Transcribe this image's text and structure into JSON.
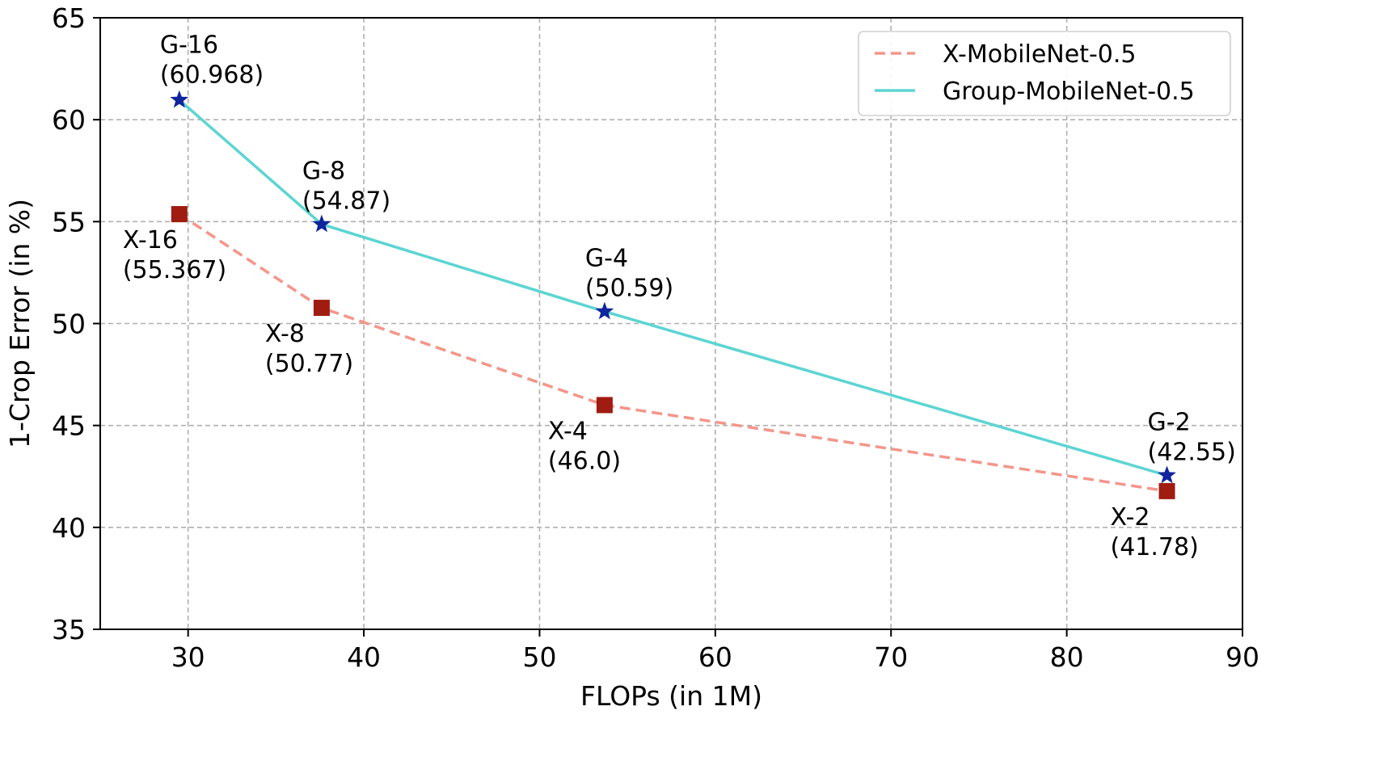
{
  "chart_data": {
    "type": "line",
    "xlabel": "FLOPs  (in 1M)",
    "ylabel": "1-Crop Error  (in %)",
    "xlim": [
      25,
      90
    ],
    "ylim": [
      35,
      65
    ],
    "xticks": [
      30,
      40,
      50,
      60,
      70,
      80,
      90
    ],
    "yticks": [
      35,
      40,
      45,
      50,
      55,
      60,
      65
    ],
    "grid": true,
    "legend_position": "top-right",
    "series": [
      {
        "name": "X-MobileNet-0.5",
        "color": "#f4968a",
        "marker_color": "#a01c10",
        "line_style": "dashed",
        "marker": "square",
        "points": [
          {
            "x": 29.5,
            "y": 55.367,
            "label": "X-16",
            "value_label": "(55.367)"
          },
          {
            "x": 37.6,
            "y": 50.77,
            "label": "X-8",
            "value_label": "(50.77)"
          },
          {
            "x": 53.7,
            "y": 46.0,
            "label": "X-4",
            "value_label": "(46.0)"
          },
          {
            "x": 85.7,
            "y": 41.78,
            "label": "X-2",
            "value_label": "(41.78)"
          }
        ]
      },
      {
        "name": "Group-MobileNet-0.5",
        "color": "#5cd5d2",
        "marker_color": "#10259c",
        "line_style": "solid",
        "marker": "star",
        "points": [
          {
            "x": 29.5,
            "y": 60.968,
            "label": "G-16",
            "value_label": "(60.968)"
          },
          {
            "x": 37.6,
            "y": 54.87,
            "label": "G-8",
            "value_label": "(54.87)"
          },
          {
            "x": 53.7,
            "y": 50.59,
            "label": "G-4",
            "value_label": "(50.59)"
          },
          {
            "x": 85.7,
            "y": 42.55,
            "label": "G-2",
            "value_label": "(42.55)"
          }
        ]
      }
    ]
  }
}
